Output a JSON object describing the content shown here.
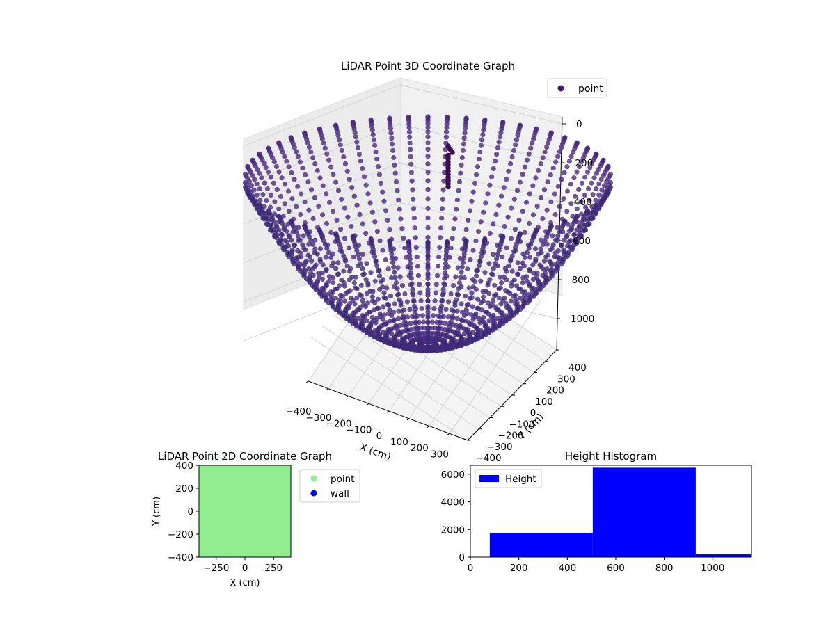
{
  "chart_data": [
    {
      "type": "scatter",
      "projection": "3d",
      "title": "LiDAR Point 3D Coordinate Graph",
      "xlabel": "X (cm)",
      "ylabel": "Y (cm)",
      "zlabel": "",
      "xticks": [
        "−400",
        "−300",
        "−200",
        "−100",
        "0",
        "100",
        "200",
        "300"
      ],
      "yticks": [
        "−400",
        "−300",
        "−200",
        "−100",
        "0",
        "100",
        "200",
        "300",
        "400"
      ],
      "zticks": [
        "0",
        "200",
        "400",
        "600",
        "800",
        "1000"
      ],
      "xlim": [
        -400,
        400
      ],
      "ylim": [
        -400,
        400
      ],
      "zlim": [
        1100,
        0
      ],
      "z_inverted": true,
      "grid": true,
      "legend": {
        "position": "top-right",
        "entries": [
          "point"
        ]
      },
      "series": [
        {
          "name": "point",
          "color": "#46176a",
          "shape": "bowl",
          "rays": 60,
          "max_radius": 420,
          "max_depth": 1060
        }
      ]
    },
    {
      "type": "scatter",
      "title": "LiDAR Point 2D Coordinate Graph",
      "xlabel": "X (cm)",
      "ylabel": "Y (cm)",
      "xlim": [
        -400,
        400
      ],
      "ylim": [
        -400,
        400
      ],
      "xticks": [
        "−250",
        "0",
        "250"
      ],
      "yticks": [
        "−400",
        "−200",
        "0",
        "200",
        "400"
      ],
      "legend": {
        "position": "outside-right",
        "entries": [
          "point",
          "wall"
        ]
      },
      "series": [
        {
          "name": "point",
          "color": "#90ee90",
          "fills_area": true
        },
        {
          "name": "wall",
          "color": "#0000ff"
        }
      ]
    },
    {
      "type": "bar",
      "subtype": "histogram",
      "title": "Height Histogram",
      "xlim": [
        0,
        1160
      ],
      "ylim": [
        0,
        6650
      ],
      "xticks": [
        "0",
        "200",
        "400",
        "600",
        "800",
        "1000"
      ],
      "yticks": [
        "0",
        "2000",
        "4000",
        "6000"
      ],
      "legend": {
        "position": "top-left",
        "entries": [
          "Height"
        ]
      },
      "series": [
        {
          "name": "Height",
          "color": "#0000ff",
          "bins": [
            {
              "from": 80,
              "to": 505,
              "count": 1750
            },
            {
              "from": 505,
              "to": 930,
              "count": 6480
            },
            {
              "from": 930,
              "to": 1160,
              "count": 200
            }
          ]
        }
      ]
    }
  ]
}
